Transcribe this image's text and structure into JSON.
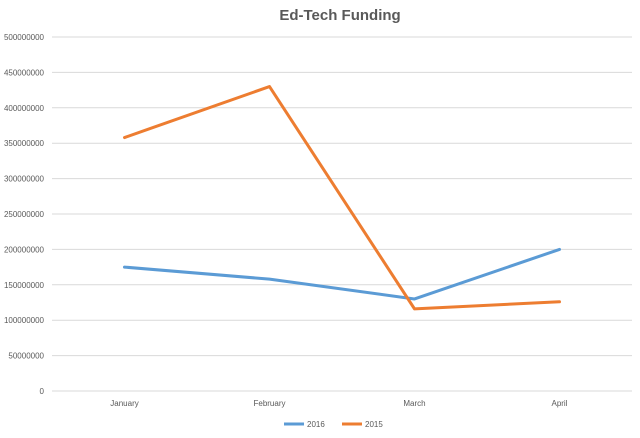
{
  "chart_data": {
    "type": "line",
    "title": "Ed-Tech Funding",
    "xlabel": "",
    "ylabel": "",
    "categories": [
      "January",
      "February",
      "March",
      "April"
    ],
    "ylim": [
      0,
      500000000
    ],
    "yticks": [
      0,
      50000000,
      100000000,
      150000000,
      200000000,
      250000000,
      300000000,
      350000000,
      400000000,
      450000000,
      500000000
    ],
    "ytick_labels": [
      "0",
      "50000000",
      "100000000",
      "150000000",
      "200000000",
      "250000000",
      "300000000",
      "350000000",
      "400000000",
      "450000000",
      "500000000"
    ],
    "grid": true,
    "legend_position": "bottom",
    "series": [
      {
        "name": "2016",
        "color": "#5b9bd5",
        "values": [
          175000000,
          158000000,
          130000000,
          200000000
        ]
      },
      {
        "name": "2015",
        "color": "#ed7d31",
        "values": [
          358000000,
          430000000,
          116000000,
          126000000
        ]
      }
    ]
  }
}
